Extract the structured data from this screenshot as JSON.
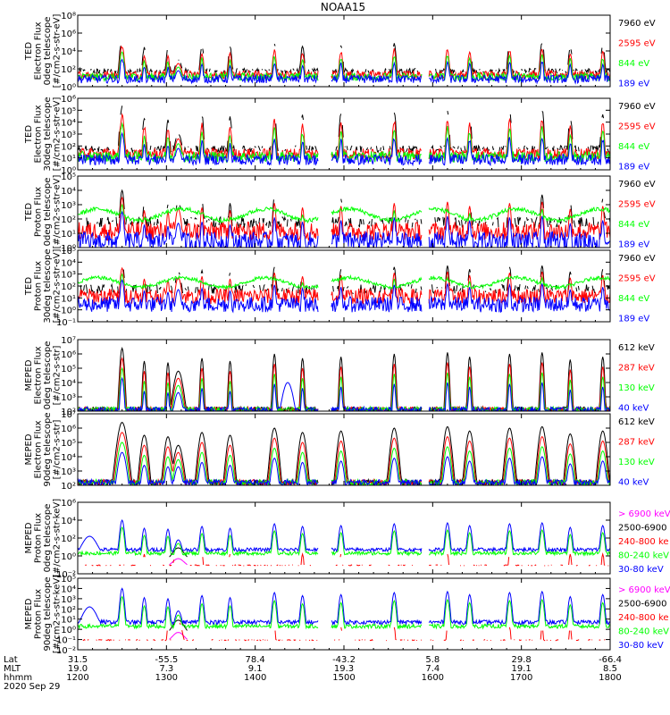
{
  "title": "NOAA15",
  "colors": {
    "black": "#000000",
    "red": "#ff0000",
    "green": "#00ff00",
    "blue": "#0000ff",
    "magenta": "#ff00ff"
  },
  "chart_data": [
    {
      "type": "line",
      "log_y": true,
      "ylim": [
        1,
        100000000.0
      ],
      "ylabel_lines": [
        "TED",
        "Electron Flux",
        "0deg telescope",
        "[#/cm2-s-str-eV]"
      ],
      "yticks": [
        {
          "v": 1,
          "label": "10⁰"
        },
        {
          "v": 100.0,
          "label": "10²"
        },
        {
          "v": 10000.0,
          "label": "10⁴"
        },
        {
          "v": 1000000.0,
          "label": "10⁶"
        },
        {
          "v": 100000000.0,
          "label": "10⁸"
        }
      ],
      "base": "electron",
      "series": [
        {
          "name": "7960 eV",
          "color": "#000000"
        },
        {
          "name": "2595 eV",
          "color": "#ff0000"
        },
        {
          "name": "844 eV",
          "color": "#00ff00"
        },
        {
          "name": "189 eV",
          "color": "#0000ff"
        }
      ]
    },
    {
      "type": "line",
      "log_y": true,
      "ylim": [
        1,
        1000000.0
      ],
      "ylabel_lines": [
        "TED",
        "Electron Flux",
        "30deg telescope",
        "[#/cm2-s-str-eV]"
      ],
      "yticks": [
        {
          "v": 1,
          "label": "10⁰"
        },
        {
          "v": 10,
          "label": "10¹"
        },
        {
          "v": 100,
          "label": "10²"
        },
        {
          "v": 1000,
          "label": "10³"
        },
        {
          "v": 10000.0,
          "label": "10⁴"
        },
        {
          "v": 100000.0,
          "label": "10⁵"
        },
        {
          "v": 1000000.0,
          "label": "10⁶"
        }
      ],
      "base": "electron",
      "series": [
        {
          "name": "7960 eV",
          "color": "#000000"
        },
        {
          "name": "2595 eV",
          "color": "#ff0000"
        },
        {
          "name": "844 eV",
          "color": "#00ff00"
        },
        {
          "name": "189 eV",
          "color": "#0000ff"
        }
      ]
    },
    {
      "type": "line",
      "log_y": true,
      "ylim": [
        1,
        100000.0
      ],
      "ylabel_lines": [
        "TED",
        "Proton Flux",
        "0deg telescope",
        "[#/cm2-s-str-eV]"
      ],
      "yticks": [
        {
          "v": 1,
          "label": "10⁰"
        },
        {
          "v": 10,
          "label": "10¹"
        },
        {
          "v": 100,
          "label": "10²"
        },
        {
          "v": 1000,
          "label": "10³"
        },
        {
          "v": 10000.0,
          "label": "10⁴"
        },
        {
          "v": 100000.0,
          "label": "10⁵"
        }
      ],
      "base": "tedproton",
      "series": [
        {
          "name": "7960 eV",
          "color": "#000000"
        },
        {
          "name": "2595 eV",
          "color": "#ff0000"
        },
        {
          "name": "844 eV",
          "color": "#00ff00"
        },
        {
          "name": "189 eV",
          "color": "#0000ff"
        }
      ]
    },
    {
      "type": "line",
      "log_y": true,
      "ylim": [
        0.1,
        100000.0
      ],
      "ylabel_lines": [
        "TED",
        "Proton Flux",
        "30deg telescope",
        "[#/cm2-s-str-eV]"
      ],
      "yticks": [
        {
          "v": 0.1,
          "label": "10⁻¹"
        },
        {
          "v": 1,
          "label": "10⁰"
        },
        {
          "v": 10,
          "label": "10¹"
        },
        {
          "v": 100,
          "label": "10²"
        },
        {
          "v": 1000,
          "label": "10³"
        },
        {
          "v": 10000.0,
          "label": "10⁴"
        },
        {
          "v": 100000.0,
          "label": "10⁵"
        }
      ],
      "base": "tedproton",
      "series": [
        {
          "name": "7960 eV",
          "color": "#000000"
        },
        {
          "name": "2595 eV",
          "color": "#ff0000"
        },
        {
          "name": "844 eV",
          "color": "#00ff00"
        },
        {
          "name": "189 eV",
          "color": "#0000ff"
        }
      ]
    },
    {
      "type": "line",
      "log_y": true,
      "ylim": [
        100,
        10000000.0
      ],
      "ylabel_lines": [
        "MEPED",
        "Electron Flux",
        "0deg telescope",
        "[#/cm2-s-str]"
      ],
      "yticks": [
        {
          "v": 100,
          "label": "10²"
        },
        {
          "v": 1000,
          "label": "10³"
        },
        {
          "v": 10000.0,
          "label": "10⁴"
        },
        {
          "v": 100000.0,
          "label": "10⁵"
        },
        {
          "v": 1000000.0,
          "label": "10⁶"
        },
        {
          "v": 10000000.0,
          "label": "10⁷"
        }
      ],
      "base": "mepedelectron",
      "series": [
        {
          "name": "612 keV",
          "color": "#000000"
        },
        {
          "name": "287 keV",
          "color": "#ff0000"
        },
        {
          "name": "130 keV",
          "color": "#00ff00"
        },
        {
          "name": "40 keV",
          "color": "#0000ff"
        }
      ]
    },
    {
      "type": "line",
      "log_y": true,
      "ylim": [
        100,
        10000000.0
      ],
      "ylabel_lines": [
        "MEPED",
        "Electron Flux",
        "90deg telescope",
        "[#/cm2-s-str]"
      ],
      "yticks": [
        {
          "v": 100,
          "label": "10²"
        },
        {
          "v": 1000,
          "label": "10³"
        },
        {
          "v": 10000.0,
          "label": "10⁴"
        },
        {
          "v": 100000.0,
          "label": "10⁵"
        },
        {
          "v": 1000000.0,
          "label": "10⁶"
        },
        {
          "v": 10000000.0,
          "label": "10⁷"
        }
      ],
      "base": "mepedelectron90",
      "series": [
        {
          "name": "612 keV",
          "color": "#000000"
        },
        {
          "name": "287 keV",
          "color": "#ff0000"
        },
        {
          "name": "130 keV",
          "color": "#00ff00"
        },
        {
          "name": "40 keV",
          "color": "#0000ff"
        }
      ]
    },
    {
      "type": "line",
      "log_y": true,
      "ylim": [
        0.01,
        1000000.0
      ],
      "ylabel_lines": [
        "MEPED",
        "Proton Flux",
        "0deg telescope",
        "[#/cm2-s-str-keV]"
      ],
      "yticks": [
        {
          "v": 0.01,
          "label": "10⁻²"
        },
        {
          "v": 1,
          "label": "10⁰"
        },
        {
          "v": 100,
          "label": "10²"
        },
        {
          "v": 10000.0,
          "label": "10⁴"
        },
        {
          "v": 1000000.0,
          "label": "10⁶"
        }
      ],
      "base": "mepedproton",
      "series": [
        {
          "name": "> 6900 keV",
          "color": "#ff00ff"
        },
        {
          "name": "2500-6900",
          "color": "#000000"
        },
        {
          "name": "240-800 ke",
          "color": "#ff0000"
        },
        {
          "name": "80-240 keV",
          "color": "#00ff00"
        },
        {
          "name": "30-80 keV",
          "color": "#0000ff"
        }
      ]
    },
    {
      "type": "line",
      "log_y": true,
      "ylim": [
        0.01,
        100000.0
      ],
      "ylabel_lines": [
        "MEPED",
        "Proton Flux",
        "90deg telescope",
        "[#/cm2-s-str-keV]"
      ],
      "yticks": [
        {
          "v": 0.01,
          "label": "10⁻²"
        },
        {
          "v": 0.1,
          "label": "10⁻¹"
        },
        {
          "v": 1,
          "label": "10⁰"
        },
        {
          "v": 10,
          "label": "10¹"
        },
        {
          "v": 100,
          "label": "10²"
        },
        {
          "v": 1000,
          "label": "10³"
        },
        {
          "v": 10000.0,
          "label": "10⁴"
        },
        {
          "v": 100000.0,
          "label": "10⁵"
        }
      ],
      "base": "mepedproton",
      "series": [
        {
          "name": "> 6900 keV",
          "color": "#ff00ff"
        },
        {
          "name": "2500-6900",
          "color": "#000000"
        },
        {
          "name": "240-800 ke",
          "color": "#ff0000"
        },
        {
          "name": "80-240 keV",
          "color": "#00ff00"
        },
        {
          "name": "30-80 keV",
          "color": "#0000ff"
        }
      ]
    }
  ],
  "xaxis": {
    "range_minutes": [
      0,
      360
    ],
    "row_labels": [
      "Lat",
      "MLT",
      "hhmm",
      "2020 Sep 29"
    ],
    "ticks": [
      {
        "t": 0,
        "lat": "31.5",
        "mlt": "19.0",
        "hhmm": "1200"
      },
      {
        "t": 60,
        "lat": "-55.5",
        "mlt": "7.3",
        "hhmm": "1300"
      },
      {
        "t": 120,
        "lat": "78.4",
        "mlt": "9.1",
        "hhmm": "1400"
      },
      {
        "t": 180,
        "lat": "-43.2",
        "mlt": "19.3",
        "hhmm": "1500"
      },
      {
        "t": 240,
        "lat": "5.8",
        "mlt": "7.4",
        "hhmm": "1600"
      },
      {
        "t": 300,
        "lat": "29.8",
        "mlt": "19.1",
        "hhmm": "1700"
      },
      {
        "t": 360,
        "lat": "-66.4",
        "mlt": "8.5",
        "hhmm": "1800"
      }
    ]
  },
  "data_gaps_minutes": [
    [
      163,
      171
    ],
    [
      233,
      237
    ]
  ]
}
